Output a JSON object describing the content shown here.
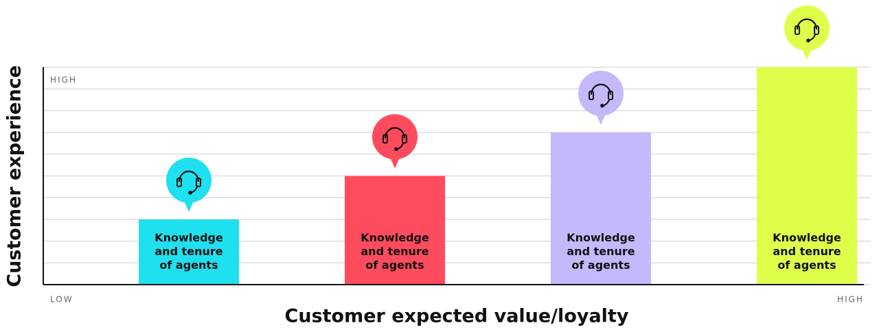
{
  "chart_data": {
    "type": "bar",
    "x_label": "Customer expected value/loyalty",
    "y_label": "Customer experience",
    "y_high_label": "HIGH",
    "x_low_label": "LOW",
    "x_high_label": "HIGH",
    "categories": [
      "Knowledge and tenure of agents",
      "Knowledge and tenure of agents",
      "Knowledge and tenure of agents",
      "Knowledge and tenure of agents"
    ],
    "values": [
      3,
      5,
      7,
      10
    ],
    "colors": [
      "#1fe0ef",
      "#ff4b5e",
      "#c5b8fb",
      "#ddff4a"
    ],
    "ylim": [
      0,
      10
    ],
    "yticks": [
      0,
      1,
      2,
      3,
      4,
      5,
      6,
      7,
      8,
      9,
      10
    ],
    "grid": true
  }
}
